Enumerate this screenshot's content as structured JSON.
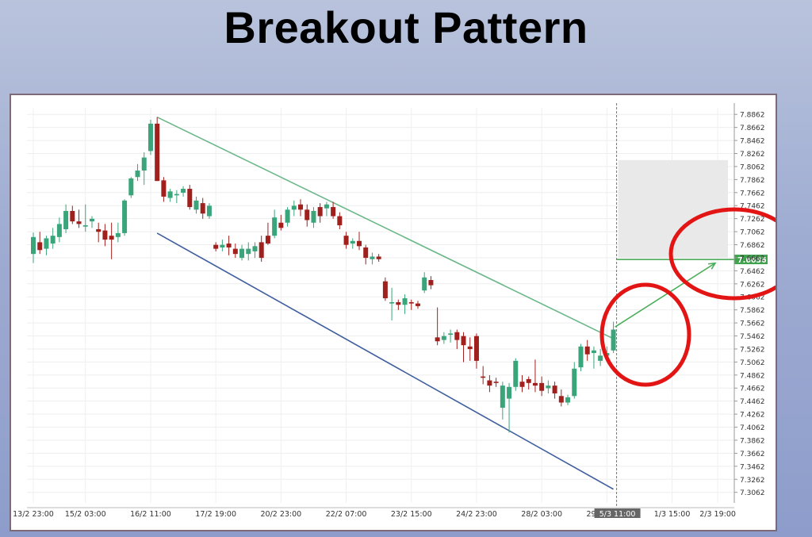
{
  "title": "Breakout Pattern",
  "colors": {
    "bull": "#3aa57a",
    "bear": "#a0201e",
    "upper_trend": "#6cb88a",
    "lower_trend": "#3f5f9e",
    "breakout_arrow": "#4caf5a",
    "highlight_circle": "#e31414",
    "price_tag": "#3fa34d",
    "target_zone": "#e9e9e9"
  },
  "chart_data": {
    "type": "candlestick",
    "title": "Breakout Pattern",
    "xlabel": "",
    "ylabel": "",
    "ylim": [
      7.29,
      7.8962
    ],
    "grid": true,
    "y_ticks": [
      "7.8862",
      "7.8662",
      "7.8462",
      "7.8262",
      "7.8062",
      "7.7862",
      "7.7662",
      "7.7462",
      "7.7262",
      "7.7062",
      "7.6862",
      "7.6662",
      "7.6462",
      "7.6262",
      "7.6062",
      "7.5862",
      "7.5662",
      "7.5462",
      "7.5262",
      "7.5062",
      "7.4862",
      "7.4662",
      "7.4462",
      "7.4262",
      "7.4062",
      "7.3862",
      "7.3662",
      "7.3462",
      "7.3262",
      "7.3062"
    ],
    "x_ticks": [
      {
        "index": 0,
        "label": "13/2 23:00"
      },
      {
        "index": 8,
        "label": "15/2 03:00"
      },
      {
        "index": 18,
        "label": "16/2 11:00"
      },
      {
        "index": 28,
        "label": "17/2 19:00"
      },
      {
        "index": 38,
        "label": "20/2 23:00"
      },
      {
        "index": 48,
        "label": "22/2 07:00"
      },
      {
        "index": 58,
        "label": "23/2 15:00"
      },
      {
        "index": 68,
        "label": "24/2 23:00"
      },
      {
        "index": 78,
        "label": "28/2 03:00"
      },
      {
        "index": 88,
        "label": "29/2 11:00"
      },
      {
        "index": 98,
        "label": "1/3 15:00"
      },
      {
        "index": 105,
        "label": "2/3 19:00"
      }
    ],
    "current_time_label": "5/3 11:00",
    "current_price_label": "7.6636",
    "candles": [
      {
        "o": 7.672,
        "h": 7.705,
        "l": 7.658,
        "c": 7.698
      },
      {
        "o": 7.69,
        "h": 7.706,
        "l": 7.672,
        "c": 7.678
      },
      {
        "o": 7.68,
        "h": 7.7,
        "l": 7.67,
        "c": 7.696
      },
      {
        "o": 7.688,
        "h": 7.712,
        "l": 7.68,
        "c": 7.7
      },
      {
        "o": 7.698,
        "h": 7.728,
        "l": 7.69,
        "c": 7.718
      },
      {
        "o": 7.71,
        "h": 7.748,
        "l": 7.704,
        "c": 7.738
      },
      {
        "o": 7.738,
        "h": 7.746,
        "l": 7.718,
        "c": 7.722
      },
      {
        "o": 7.722,
        "h": 7.74,
        "l": 7.712,
        "c": 7.718
      },
      {
        "o": 7.714,
        "h": 7.748,
        "l": 7.706,
        "c": 7.716
      },
      {
        "o": 7.722,
        "h": 7.73,
        "l": 7.712,
        "c": 7.726
      },
      {
        "o": 7.71,
        "h": 7.72,
        "l": 7.69,
        "c": 7.706
      },
      {
        "o": 7.708,
        "h": 7.718,
        "l": 7.684,
        "c": 7.694
      },
      {
        "o": 7.7,
        "h": 7.72,
        "l": 7.664,
        "c": 7.694
      },
      {
        "o": 7.698,
        "h": 7.72,
        "l": 7.69,
        "c": 7.704
      },
      {
        "o": 7.704,
        "h": 7.756,
        "l": 7.7,
        "c": 7.754
      },
      {
        "o": 7.762,
        "h": 7.79,
        "l": 7.758,
        "c": 7.788
      },
      {
        "o": 7.79,
        "h": 7.81,
        "l": 7.784,
        "c": 7.8
      },
      {
        "o": 7.8,
        "h": 7.828,
        "l": 7.778,
        "c": 7.82
      },
      {
        "o": 7.83,
        "h": 7.878,
        "l": 7.824,
        "c": 7.872
      },
      {
        "o": 7.872,
        "h": 7.882,
        "l": 7.784,
        "c": 7.784
      },
      {
        "o": 7.785,
        "h": 7.79,
        "l": 7.752,
        "c": 7.76
      },
      {
        "o": 7.758,
        "h": 7.772,
        "l": 7.752,
        "c": 7.768
      },
      {
        "o": 7.762,
        "h": 7.77,
        "l": 7.75,
        "c": 7.764
      },
      {
        "o": 7.766,
        "h": 7.776,
        "l": 7.76,
        "c": 7.772
      },
      {
        "o": 7.772,
        "h": 7.778,
        "l": 7.74,
        "c": 7.744
      },
      {
        "o": 7.74,
        "h": 7.76,
        "l": 7.734,
        "c": 7.754
      },
      {
        "o": 7.75,
        "h": 7.758,
        "l": 7.726,
        "c": 7.734
      },
      {
        "o": 7.73,
        "h": 7.75,
        "l": 7.726,
        "c": 7.746
      },
      {
        "o": 7.686,
        "h": 7.69,
        "l": 7.676,
        "c": 7.68
      },
      {
        "o": 7.682,
        "h": 7.694,
        "l": 7.676,
        "c": 7.686
      },
      {
        "o": 7.688,
        "h": 7.7,
        "l": 7.67,
        "c": 7.682
      },
      {
        "o": 7.68,
        "h": 7.688,
        "l": 7.666,
        "c": 7.672
      },
      {
        "o": 7.666,
        "h": 7.686,
        "l": 7.662,
        "c": 7.68
      },
      {
        "o": 7.672,
        "h": 7.69,
        "l": 7.662,
        "c": 7.68
      },
      {
        "o": 7.676,
        "h": 7.69,
        "l": 7.666,
        "c": 7.684
      },
      {
        "o": 7.69,
        "h": 7.7,
        "l": 7.66,
        "c": 7.666
      },
      {
        "o": 7.7,
        "h": 7.72,
        "l": 7.686,
        "c": 7.688
      },
      {
        "o": 7.7,
        "h": 7.74,
        "l": 7.696,
        "c": 7.728
      },
      {
        "o": 7.72,
        "h": 7.732,
        "l": 7.708,
        "c": 7.712
      },
      {
        "o": 7.72,
        "h": 7.744,
        "l": 7.714,
        "c": 7.74
      },
      {
        "o": 7.74,
        "h": 7.754,
        "l": 7.73,
        "c": 7.746
      },
      {
        "o": 7.748,
        "h": 7.756,
        "l": 7.73,
        "c": 7.74
      },
      {
        "o": 7.74,
        "h": 7.748,
        "l": 7.714,
        "c": 7.724
      },
      {
        "o": 7.72,
        "h": 7.744,
        "l": 7.712,
        "c": 7.738
      },
      {
        "o": 7.744,
        "h": 7.75,
        "l": 7.72,
        "c": 7.73
      },
      {
        "o": 7.742,
        "h": 7.752,
        "l": 7.73,
        "c": 7.748
      },
      {
        "o": 7.744,
        "h": 7.752,
        "l": 7.726,
        "c": 7.73
      },
      {
        "o": 7.73,
        "h": 7.736,
        "l": 7.71,
        "c": 7.716
      },
      {
        "o": 7.7,
        "h": 7.706,
        "l": 7.68,
        "c": 7.686
      },
      {
        "o": 7.688,
        "h": 7.696,
        "l": 7.68,
        "c": 7.692
      },
      {
        "o": 7.692,
        "h": 7.706,
        "l": 7.678,
        "c": 7.684
      },
      {
        "o": 7.682,
        "h": 7.686,
        "l": 7.656,
        "c": 7.666
      },
      {
        "o": 7.664,
        "h": 7.674,
        "l": 7.656,
        "c": 7.668
      },
      {
        "o": 7.668,
        "h": 7.672,
        "l": 7.66,
        "c": 7.664
      },
      {
        "o": 7.63,
        "h": 7.636,
        "l": 7.6,
        "c": 7.604
      },
      {
        "o": 7.596,
        "h": 7.62,
        "l": 7.57,
        "c": 7.598
      },
      {
        "o": 7.598,
        "h": 7.602,
        "l": 7.586,
        "c": 7.594
      },
      {
        "o": 7.594,
        "h": 7.61,
        "l": 7.58,
        "c": 7.604
      },
      {
        "o": 7.598,
        "h": 7.602,
        "l": 7.586,
        "c": 7.596
      },
      {
        "o": 7.596,
        "h": 7.6,
        "l": 7.588,
        "c": 7.592
      },
      {
        "o": 7.616,
        "h": 7.644,
        "l": 7.612,
        "c": 7.636
      },
      {
        "o": 7.632,
        "h": 7.638,
        "l": 7.618,
        "c": 7.624
      },
      {
        "o": 7.544,
        "h": 7.59,
        "l": 7.532,
        "c": 7.538
      },
      {
        "o": 7.54,
        "h": 7.552,
        "l": 7.534,
        "c": 7.546
      },
      {
        "o": 7.548,
        "h": 7.556,
        "l": 7.536,
        "c": 7.55
      },
      {
        "o": 7.552,
        "h": 7.556,
        "l": 7.526,
        "c": 7.54
      },
      {
        "o": 7.546,
        "h": 7.552,
        "l": 7.506,
        "c": 7.532
      },
      {
        "o": 7.53,
        "h": 7.544,
        "l": 7.508,
        "c": 7.526
      },
      {
        "o": 7.546,
        "h": 7.55,
        "l": 7.496,
        "c": 7.508
      },
      {
        "o": 7.484,
        "h": 7.5,
        "l": 7.472,
        "c": 7.482
      },
      {
        "o": 7.478,
        "h": 7.486,
        "l": 7.46,
        "c": 7.47
      },
      {
        "o": 7.476,
        "h": 7.482,
        "l": 7.468,
        "c": 7.474
      },
      {
        "o": 7.436,
        "h": 7.476,
        "l": 7.418,
        "c": 7.47
      },
      {
        "o": 7.45,
        "h": 7.474,
        "l": 7.398,
        "c": 7.468
      },
      {
        "o": 7.468,
        "h": 7.512,
        "l": 7.462,
        "c": 7.508
      },
      {
        "o": 7.476,
        "h": 7.486,
        "l": 7.46,
        "c": 7.468
      },
      {
        "o": 7.48,
        "h": 7.484,
        "l": 7.464,
        "c": 7.474
      },
      {
        "o": 7.474,
        "h": 7.51,
        "l": 7.46,
        "c": 7.47
      },
      {
        "o": 7.474,
        "h": 7.484,
        "l": 7.454,
        "c": 7.462
      },
      {
        "o": 7.466,
        "h": 7.478,
        "l": 7.458,
        "c": 7.47
      },
      {
        "o": 7.47,
        "h": 7.476,
        "l": 7.45,
        "c": 7.458
      },
      {
        "o": 7.454,
        "h": 7.464,
        "l": 7.438,
        "c": 7.444
      },
      {
        "o": 7.444,
        "h": 7.456,
        "l": 7.44,
        "c": 7.452
      },
      {
        "o": 7.454,
        "h": 7.506,
        "l": 7.45,
        "c": 7.496
      },
      {
        "o": 7.498,
        "h": 7.534,
        "l": 7.492,
        "c": 7.53
      },
      {
        "o": 7.53,
        "h": 7.54,
        "l": 7.508,
        "c": 7.518
      },
      {
        "o": 7.52,
        "h": 7.53,
        "l": 7.496,
        "c": 7.524
      },
      {
        "o": 7.508,
        "h": 7.526,
        "l": 7.5,
        "c": 7.516
      },
      {
        "o": 7.516,
        "h": 7.53,
        "l": 7.512,
        "c": 7.52
      },
      {
        "o": 7.524,
        "h": 7.568,
        "l": 7.52,
        "c": 7.556
      }
    ]
  }
}
